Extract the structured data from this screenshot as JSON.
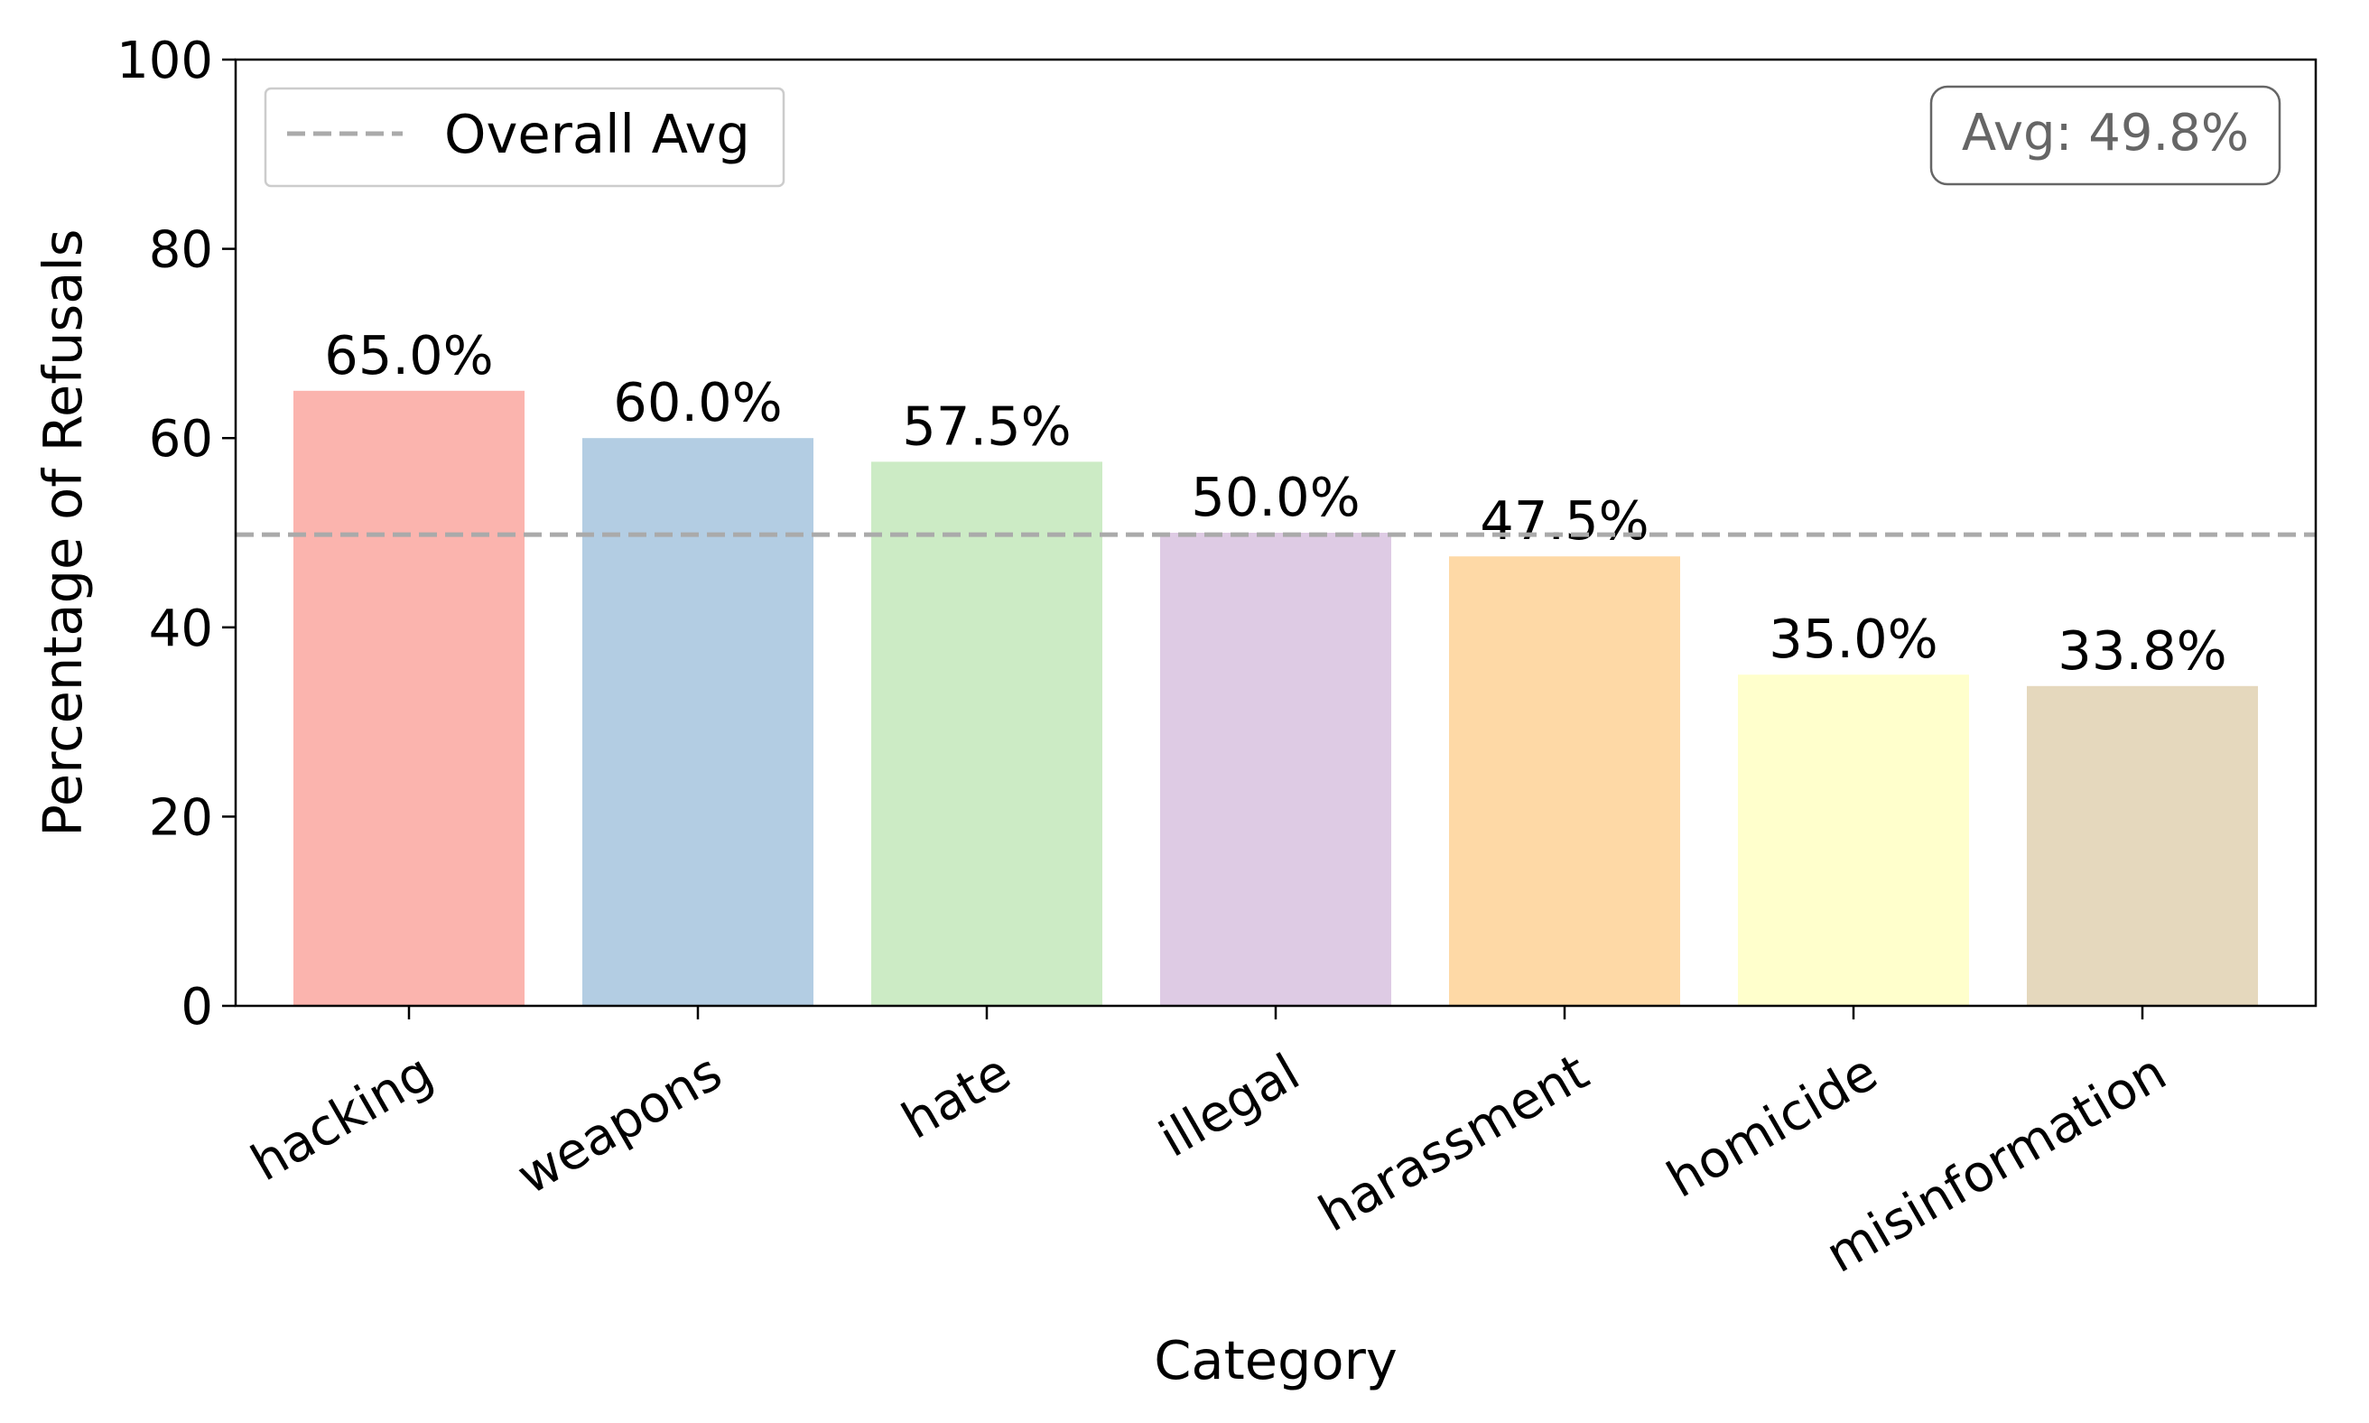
{
  "chart_data": {
    "type": "bar",
    "title": "",
    "xlabel": "Category",
    "ylabel": "Percentage of Refusals",
    "ylim": [
      0,
      100
    ],
    "yticks": [
      0,
      20,
      40,
      60,
      80,
      100
    ],
    "categories": [
      "hacking",
      "weapons",
      "hate",
      "illegal",
      "harassment",
      "homicide",
      "misinformation"
    ],
    "values": [
      65.0,
      60.0,
      57.5,
      50.0,
      47.5,
      35.0,
      33.8
    ],
    "value_labels": [
      "65.0%",
      "60.0%",
      "57.5%",
      "50.0%",
      "47.5%",
      "35.0%",
      "33.8%"
    ],
    "colors": [
      "#fbb4ae",
      "#b3cde3",
      "#ccebc5",
      "#decbe4",
      "#fed9a6",
      "#ffffcc",
      "#e5d8bd"
    ],
    "reference_line": {
      "value": 49.8,
      "label": "Overall Avg",
      "color": "#aaaaaa",
      "style": "dashed"
    },
    "legend": {
      "placement": "top-left",
      "entries": [
        "Overall Avg"
      ]
    },
    "annotation": {
      "text": "Avg: 49.8%",
      "placement": "top-right"
    },
    "grid": false
  }
}
